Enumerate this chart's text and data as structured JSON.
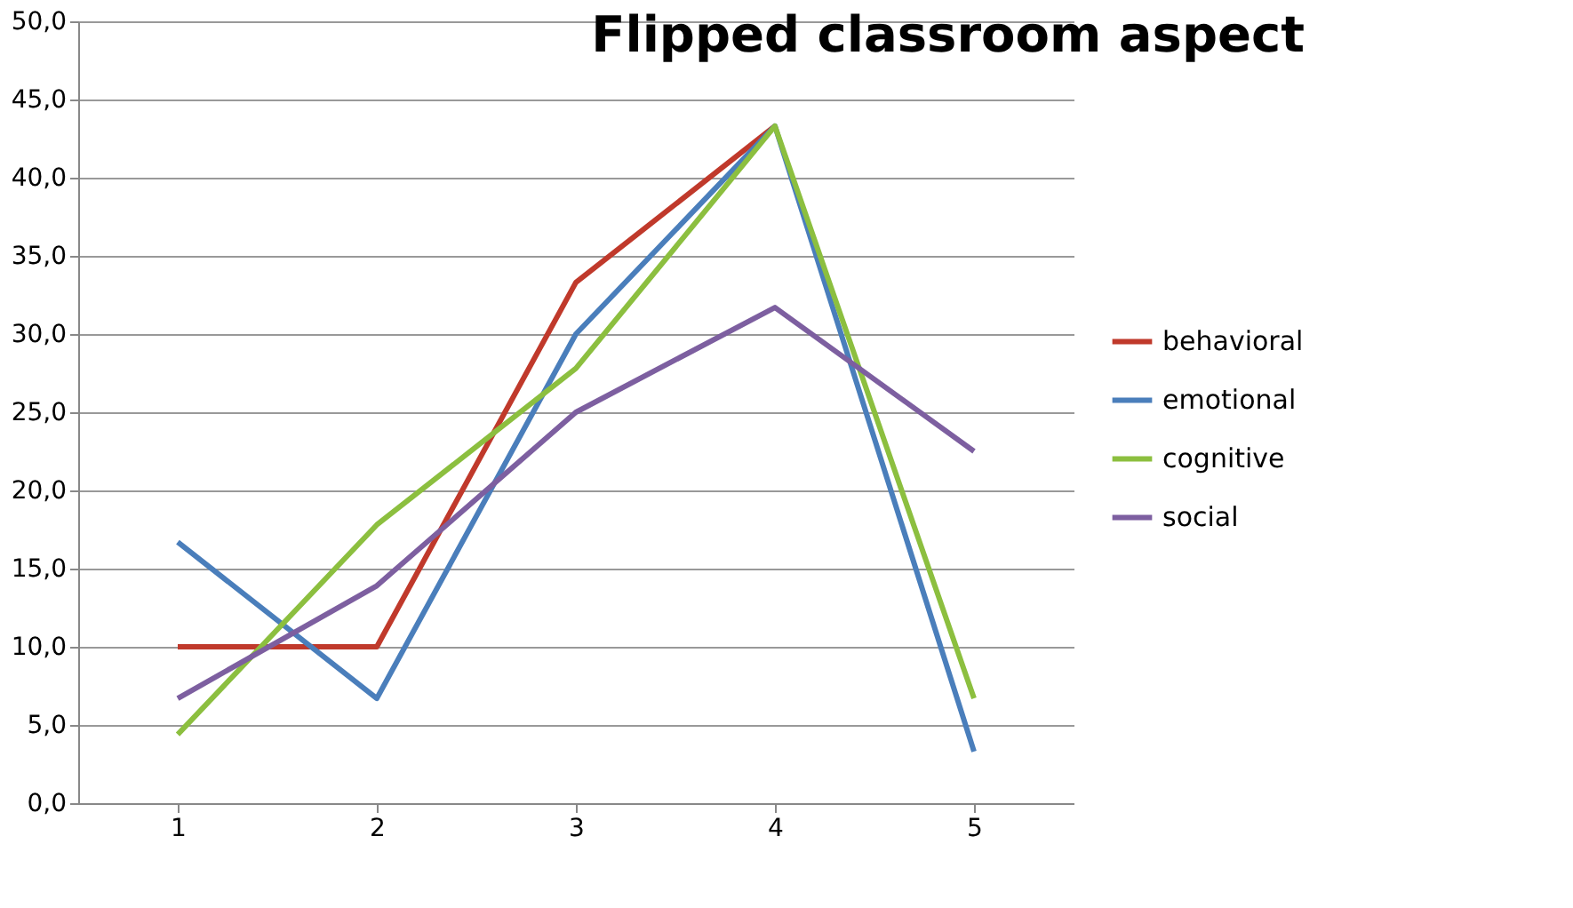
{
  "chart_data": {
    "type": "line",
    "title": "Flipped classroom aspect",
    "categories": [
      "1",
      "2",
      "3",
      "4",
      "5"
    ],
    "series": [
      {
        "name": "behavioral",
        "color": "#c0392b",
        "values": [
          10.0,
          10.0,
          33.3,
          43.3,
          null
        ]
      },
      {
        "name": "emotional",
        "color": "#4a7ebb",
        "values": [
          16.7,
          6.7,
          30.0,
          43.3,
          3.3
        ]
      },
      {
        "name": "cognitive",
        "color": "#8cbf3f",
        "values": [
          4.4,
          17.8,
          27.8,
          43.3,
          6.7
        ]
      },
      {
        "name": "social",
        "color": "#7d5fa0",
        "values": [
          6.7,
          13.9,
          25.0,
          31.7,
          22.5
        ]
      }
    ],
    "ylim": [
      0,
      50
    ],
    "yticks": [
      {
        "value": 0,
        "label": "0,0"
      },
      {
        "value": 5,
        "label": "5,0"
      },
      {
        "value": 10,
        "label": "10,0"
      },
      {
        "value": 15,
        "label": "15,0"
      },
      {
        "value": 20,
        "label": "20,0"
      },
      {
        "value": 25,
        "label": "25,0"
      },
      {
        "value": 30,
        "label": "30,0"
      },
      {
        "value": 35,
        "label": "35,0"
      },
      {
        "value": 40,
        "label": "40,0"
      },
      {
        "value": 45,
        "label": "45,0"
      },
      {
        "value": 50,
        "label": "50,0"
      }
    ],
    "grid": "y",
    "legend": "right",
    "marker": "none",
    "line_style": "solid"
  }
}
